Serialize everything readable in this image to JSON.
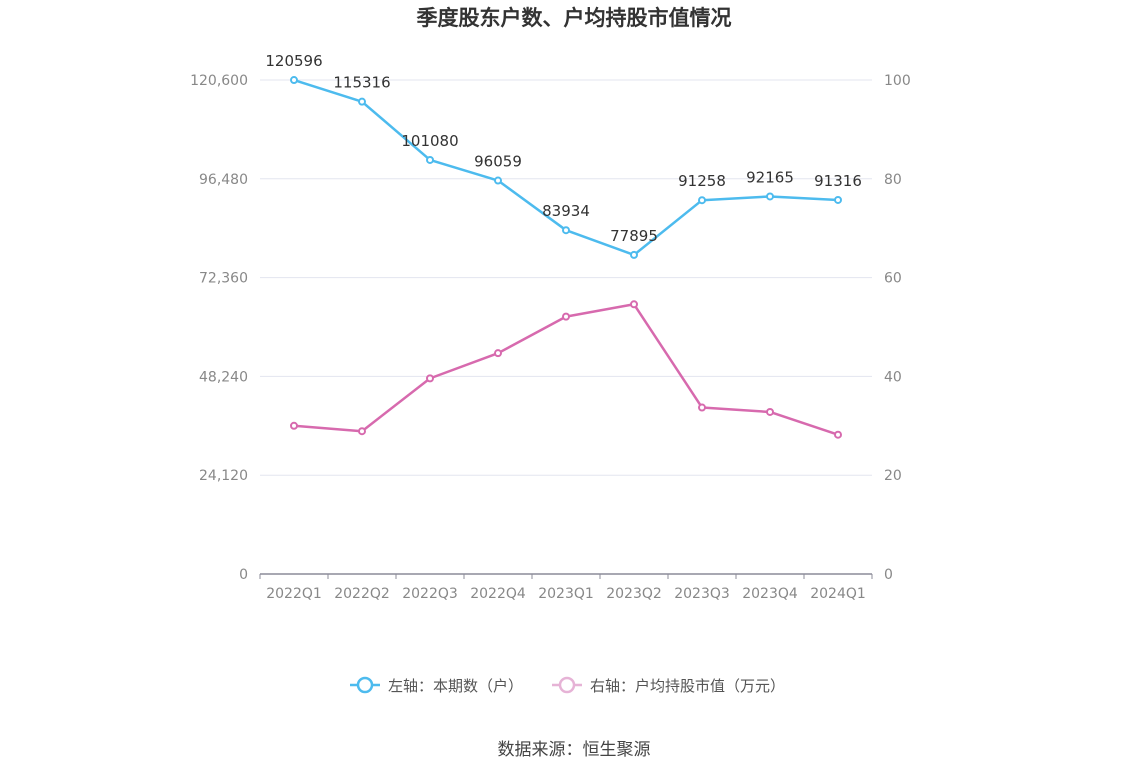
{
  "chart_data": {
    "type": "line",
    "title": "季度股东户数、户均持股市值情况",
    "categories": [
      "2022Q1",
      "2022Q2",
      "2022Q3",
      "2022Q4",
      "2023Q1",
      "2023Q2",
      "2023Q3",
      "2023Q4",
      "2024Q1"
    ],
    "series": [
      {
        "name": "左轴：本期数（户）",
        "axis": "left",
        "color": "#4dbbee",
        "values": [
          120596,
          115316,
          101080,
          96059,
          83934,
          77895,
          91258,
          92165,
          91316
        ],
        "data_labels": [
          "120596",
          "115316",
          "101080",
          "96059",
          "83934",
          "77895",
          "91258",
          "92165",
          "91316"
        ]
      },
      {
        "name": "右轴：户均持股市值（万元）",
        "axis": "right",
        "color": "#d76aae",
        "values": [
          30.0,
          28.9,
          39.6,
          44.7,
          52.1,
          54.6,
          33.7,
          32.8,
          28.2
        ]
      }
    ],
    "y_left": {
      "ylim": [
        0,
        120600
      ],
      "ticks": [
        0,
        24120,
        48240,
        72360,
        96480,
        120600
      ],
      "tick_labels": [
        "0",
        "24,120",
        "48,240",
        "72,360",
        "96,480",
        "120,600"
      ]
    },
    "y_right": {
      "ylim": [
        0,
        100
      ],
      "ticks": [
        0,
        20,
        40,
        60,
        80,
        100
      ],
      "tick_labels": [
        "0",
        "20",
        "40",
        "60",
        "80",
        "100"
      ]
    },
    "grid": true,
    "legend_position": "bottom"
  },
  "source": "数据来源：恒生聚源"
}
